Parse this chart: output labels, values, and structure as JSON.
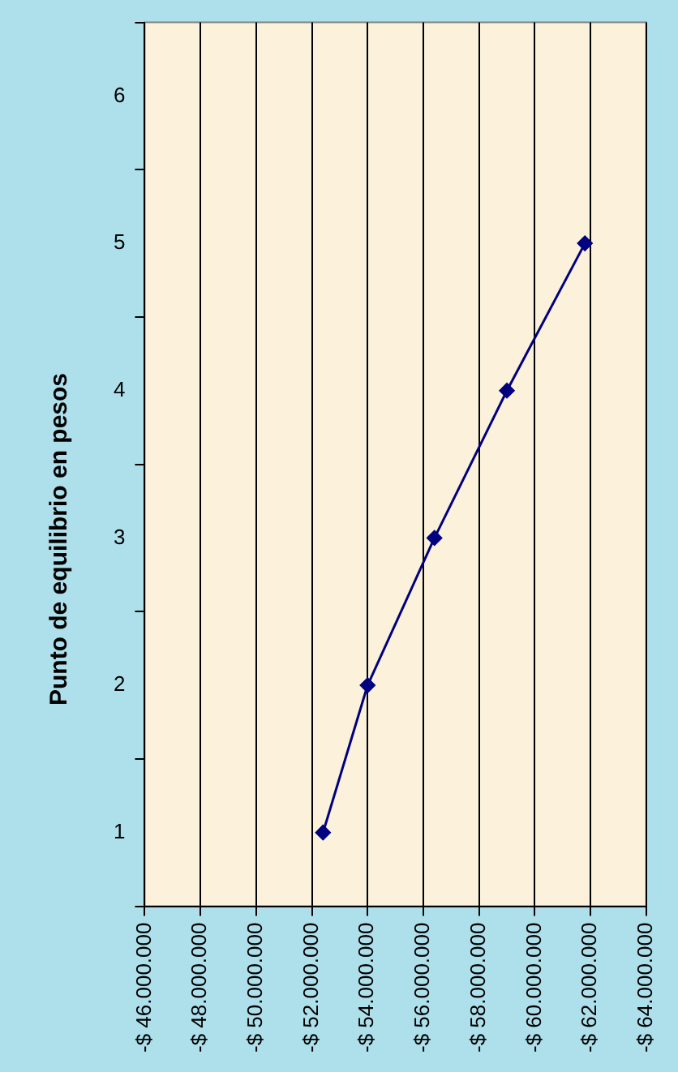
{
  "chart_data": {
    "type": "line",
    "title": "Punto de equilibrio en pesos",
    "orientation": "horizontal",
    "categories": [
      "6",
      "5",
      "4",
      "3",
      "2",
      "1"
    ],
    "series": [
      {
        "color": "#000080",
        "values": [
          null,
          -61800000,
          -59000000,
          -56400000,
          -54000000,
          -52400000
        ]
      }
    ],
    "xlim": [
      -46000000,
      -64000000
    ],
    "xticks": [
      {
        "value": -46000000,
        "label": "-$ 46.000.000"
      },
      {
        "value": -48000000,
        "label": "-$ 48.000.000"
      },
      {
        "value": -50000000,
        "label": "-$ 50.000.000"
      },
      {
        "value": -52000000,
        "label": "-$ 52.000.000"
      },
      {
        "value": -54000000,
        "label": "-$ 54.000.000"
      },
      {
        "value": -56000000,
        "label": "-$ 56.000.000"
      },
      {
        "value": -58000000,
        "label": "-$ 58.000.000"
      },
      {
        "value": -60000000,
        "label": "-$ 60.000.000"
      },
      {
        "value": -62000000,
        "label": "-$ 62.000.000"
      },
      {
        "value": -64000000,
        "label": "-$ 64.000.000"
      }
    ],
    "grid": "x",
    "legend": false,
    "marker": "diamond",
    "line_style": "solid"
  }
}
